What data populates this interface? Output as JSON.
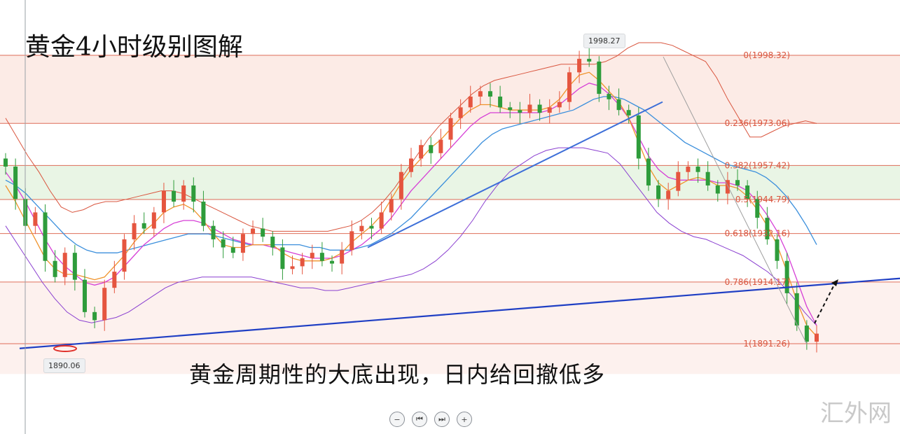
{
  "title": "黄金4小时级别图解",
  "subtitle": "黄金周期性的大底出现，日内给回撤低多",
  "watermark": "汇外网",
  "high_tag": "1998.27",
  "low_tag": "1890.06",
  "controls": {
    "zoom_out": "−",
    "prev": "⏮",
    "next": "⏭",
    "zoom_in": "+"
  },
  "colors": {
    "up": "#e5553f",
    "down": "#2e9c3b",
    "fib_line": "#d9553e",
    "trend": "#1f3fc4",
    "trend_light": "#3d6fd8",
    "ma_orange": "#f0932b",
    "ma_magenta": "#d63fd6",
    "ma_blue": "#3b8fdc",
    "band_red": "#d9553e",
    "band_purple": "#8a3fd0"
  },
  "chart_data": {
    "type": "candlestick",
    "ylim": [
      1880,
      2008
    ],
    "fib_levels": [
      {
        "label": "0(1998.32)",
        "value": 1998.32
      },
      {
        "label": "0.236(1973.06)",
        "value": 1973.06
      },
      {
        "label": "0.382(1957.42)",
        "value": 1957.42
      },
      {
        "label": "0.5(1944.79)",
        "value": 1944.79
      },
      {
        "label": "0.618(1932.16)",
        "value": 1932.16
      },
      {
        "label": "0.786(1914.17)",
        "value": 1914.17
      },
      {
        "label": "1(1891.26)",
        "value": 1891.26
      }
    ],
    "candles_close": [
      1957,
      1945,
      1935,
      1940,
      1922,
      1916,
      1925,
      1915,
      1903,
      1900,
      1912,
      1918,
      1930,
      1936,
      1934,
      1940,
      1948,
      1944,
      1950,
      1944,
      1935,
      1930,
      1927,
      1925,
      1932,
      1934,
      1931,
      1927,
      1919,
      1920,
      1923,
      1925,
      1922,
      1921,
      1926,
      1933,
      1935,
      1934,
      1940,
      1945,
      1955,
      1960,
      1965,
      1962,
      1967,
      1975,
      1979,
      1983,
      1985,
      1983,
      1979,
      1978,
      1977,
      1980,
      1977,
      1979,
      1981,
      1992,
      1997,
      1996,
      1984,
      1982,
      1978,
      1976,
      1960,
      1950,
      1945,
      1948,
      1955,
      1957,
      1955,
      1950,
      1947,
      1952,
      1950,
      1945,
      1938,
      1930,
      1922,
      1910,
      1898,
      1892,
      1895
    ],
    "ma_orange": [
      1950,
      1944,
      1937,
      1930,
      1923,
      1919,
      1917,
      1917,
      1916,
      1915,
      1916,
      1920,
      1924,
      1929,
      1933,
      1936,
      1940,
      1942,
      1943,
      1941,
      1937,
      1932,
      1928,
      1927,
      1927,
      1928,
      1928,
      1928,
      1925,
      1923,
      1922,
      1922,
      1922,
      1923,
      1925,
      1929,
      1932,
      1935,
      1939,
      1945,
      1951,
      1956,
      1960,
      1964,
      1967,
      1971,
      1975,
      1978,
      1980,
      1980,
      1979,
      1978,
      1978,
      1978,
      1978,
      1979,
      1982,
      1987,
      1991,
      1992,
      1989,
      1985,
      1981,
      1975,
      1966,
      1957,
      1951,
      1948,
      1950,
      1952,
      1953,
      1952,
      1950,
      1950,
      1949,
      1946,
      1941,
      1935,
      1928,
      1918,
      1907,
      1898,
      1894
    ],
    "ma_magenta": [
      1955,
      1950,
      1944,
      1937,
      1930,
      1924,
      1920,
      1917,
      1914,
      1913,
      1914,
      1916,
      1920,
      1924,
      1928,
      1931,
      1934,
      1936,
      1937,
      1937,
      1936,
      1934,
      1932,
      1930,
      1929,
      1928,
      1928,
      1927,
      1926,
      1925,
      1924,
      1923,
      1923,
      1923,
      1924,
      1926,
      1928,
      1931,
      1934,
      1938,
      1943,
      1948,
      1952,
      1956,
      1960,
      1964,
      1968,
      1972,
      1975,
      1977,
      1977,
      1977,
      1977,
      1977,
      1977,
      1978,
      1980,
      1983,
      1986,
      1988,
      1987,
      1984,
      1980,
      1975,
      1968,
      1961,
      1956,
      1953,
      1952,
      1952,
      1952,
      1952,
      1951,
      1951,
      1950,
      1948,
      1944,
      1939,
      1933,
      1925,
      1915,
      1905,
      1898
    ],
    "ma_blue": [
      1952,
      1950,
      1947,
      1943,
      1939,
      1935,
      1931,
      1928,
      1926,
      1925,
      1925,
      1925,
      1926,
      1927,
      1928,
      1929,
      1930,
      1931,
      1932,
      1932,
      1932,
      1931,
      1930,
      1929,
      1928,
      1928,
      1928,
      1928,
      1928,
      1928,
      1927,
      1927,
      1926,
      1926,
      1926,
      1927,
      1928,
      1930,
      1932,
      1935,
      1938,
      1942,
      1946,
      1950,
      1954,
      1958,
      1962,
      1966,
      1969,
      1971,
      1972,
      1973,
      1974,
      1975,
      1976,
      1977,
      1978,
      1980,
      1982,
      1983,
      1983,
      1982,
      1980,
      1978,
      1975,
      1972,
      1969,
      1966,
      1964,
      1962,
      1960,
      1958,
      1957,
      1956,
      1955,
      1953,
      1950,
      1946,
      1941,
      1935,
      1928
    ],
    "band_upper": [
      1975,
      1968,
      1961,
      1955,
      1948,
      1942,
      1940,
      1941,
      1943,
      1944,
      1944,
      1945,
      1946,
      1947,
      1948,
      1948,
      1947,
      1945,
      1943,
      1941,
      1939,
      1937,
      1935,
      1934,
      1933,
      1933,
      1933,
      1933,
      1933,
      1933,
      1934,
      1935,
      1937,
      1940,
      1944,
      1949,
      1955,
      1961,
      1967,
      1972,
      1976,
      1980,
      1984,
      1987,
      1989,
      1990,
      1991,
      1992,
      1993,
      1994,
      1995,
      1995,
      1995,
      1995,
      1996,
      1998,
      2001,
      2003,
      2003,
      2003,
      2002,
      2000,
      1998,
      1996,
      1990,
      1982,
      1975,
      1968,
      1968,
      1970,
      1972,
      1973,
      1974,
      1973
    ],
    "band_lower": [
      1935,
      1928,
      1921,
      1914,
      1908,
      1903,
      1900,
      1899,
      1900,
      1901,
      1903,
      1906,
      1909,
      1912,
      1914,
      1915,
      1916,
      1916,
      1916,
      1916,
      1916,
      1915,
      1914,
      1913,
      1912,
      1912,
      1911,
      1911,
      1912,
      1913,
      1914,
      1915,
      1916,
      1917,
      1919,
      1922,
      1926,
      1931,
      1937,
      1944,
      1950,
      1955,
      1958,
      1961,
      1963,
      1964,
      1964,
      1964,
      1963,
      1962,
      1958,
      1952,
      1946,
      1940,
      1936,
      1933,
      1931,
      1930,
      1928,
      1926,
      1924,
      1921,
      1918,
      1914,
      1909,
      1903,
      1898
    ],
    "trendline_low": {
      "from_value": 1889.5,
      "to_value": 1915.5
    },
    "trendline_mid": {
      "from_value": 1927,
      "to_value": 1981
    },
    "high": 1998.27,
    "low": 1890.06
  }
}
